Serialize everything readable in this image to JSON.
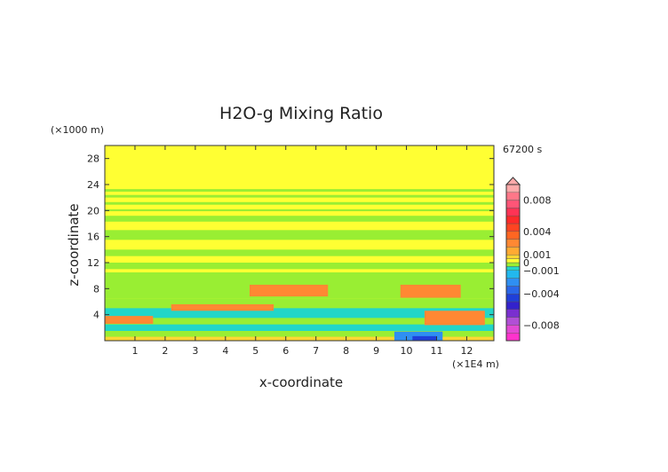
{
  "chart_data": {
    "type": "heatmap",
    "title": "H2O-g Mixing Ratio",
    "xlabel": "x-coordinate",
    "ylabel": "z-coordinate",
    "x_unit": "(×1E4 m)",
    "y_unit": "(×1000 m)",
    "time_label": "67200 s",
    "xlim": [
      0,
      12.9
    ],
    "ylim": [
      0,
      30
    ],
    "x_ticks": [
      1,
      2,
      3,
      4,
      5,
      6,
      7,
      8,
      9,
      10,
      11,
      12
    ],
    "y_ticks": [
      4,
      8,
      12,
      16,
      20,
      24,
      28
    ],
    "colorbar": {
      "range": [
        -0.01,
        0.01
      ],
      "extend": "max",
      "tick_labels": [
        {
          "value": 0.008,
          "label": "0.008"
        },
        {
          "value": 0.004,
          "label": "0.004"
        },
        {
          "value": 0.001,
          "label": "0.001"
        },
        {
          "value": 0,
          "label": "0"
        },
        {
          "value": -0.001,
          "label": "−0.001"
        },
        {
          "value": -0.004,
          "label": "−0.004"
        },
        {
          "value": -0.008,
          "label": "−0.008"
        }
      ],
      "bands": [
        {
          "from": -0.01,
          "to": -0.009,
          "color": "#ff33cc"
        },
        {
          "from": -0.009,
          "to": -0.008,
          "color": "#e24ad4"
        },
        {
          "from": -0.008,
          "to": -0.007,
          "color": "#b14fd6"
        },
        {
          "from": -0.007,
          "to": -0.006,
          "color": "#7a2fd0"
        },
        {
          "from": -0.006,
          "to": -0.005,
          "color": "#3322cc"
        },
        {
          "from": -0.005,
          "to": -0.004,
          "color": "#1f3fd9"
        },
        {
          "from": -0.004,
          "to": -0.003,
          "color": "#2a66e8"
        },
        {
          "from": -0.003,
          "to": -0.002,
          "color": "#2f8ff2"
        },
        {
          "from": -0.002,
          "to": -0.001,
          "color": "#22b8ee"
        },
        {
          "from": -0.001,
          "to": -0.0005,
          "color": "#22d6c8"
        },
        {
          "from": -0.0005,
          "to": 0,
          "color": "#99ee33"
        },
        {
          "from": 0,
          "to": 0.0005,
          "color": "#ffff33"
        },
        {
          "from": 0.0005,
          "to": 0.001,
          "color": "#ffd633"
        },
        {
          "from": 0.001,
          "to": 0.002,
          "color": "#ffaa33"
        },
        {
          "from": 0.002,
          "to": 0.003,
          "color": "#ff8833"
        },
        {
          "from": 0.003,
          "to": 0.004,
          "color": "#ff6622"
        },
        {
          "from": 0.004,
          "to": 0.005,
          "color": "#ff4422"
        },
        {
          "from": 0.005,
          "to": 0.006,
          "color": "#ff2a2a"
        },
        {
          "from": 0.006,
          "to": 0.007,
          "color": "#ff3355"
        },
        {
          "from": 0.007,
          "to": 0.008,
          "color": "#ff5577"
        },
        {
          "from": 0.008,
          "to": 0.009,
          "color": "#ff7788"
        },
        {
          "from": 0.009,
          "to": 0.01,
          "color": "#ffaaaa"
        }
      ]
    },
    "field": {
      "background": 0.0003,
      "regions": [
        {
          "x0": 0.0,
          "x1": 12.9,
          "z0": 28.0,
          "z1": 30.0,
          "value": 0.0002
        },
        {
          "x0": 0.0,
          "x1": 12.9,
          "z0": 22.9,
          "z1": 23.3,
          "value": -0.0003
        },
        {
          "x0": 0.0,
          "x1": 12.9,
          "z0": 22.0,
          "z1": 22.4,
          "value": -0.0003
        },
        {
          "x0": 0.0,
          "x1": 12.9,
          "z0": 20.9,
          "z1": 21.3,
          "value": -0.0003
        },
        {
          "x0": 0.0,
          "x1": 12.9,
          "z0": 19.9,
          "z1": 20.2,
          "value": -0.0003
        },
        {
          "x0": 0.0,
          "x1": 12.9,
          "z0": 18.3,
          "z1": 19.2,
          "value": -0.0003
        },
        {
          "x0": 0.0,
          "x1": 12.9,
          "z0": 15.5,
          "z1": 17.0,
          "value": -0.0003
        },
        {
          "x0": 0.0,
          "x1": 12.9,
          "z0": 13.0,
          "z1": 14.0,
          "value": -0.0003
        },
        {
          "x0": 0.0,
          "x1": 12.9,
          "z0": 11.0,
          "z1": 12.0,
          "value": -0.0003
        },
        {
          "x0": 0.0,
          "x1": 12.9,
          "z0": 6.5,
          "z1": 10.5,
          "value": -0.0003
        },
        {
          "x0": 0.0,
          "x1": 12.9,
          "z0": 0.0,
          "z1": 6.5,
          "value": -0.0003
        },
        {
          "x0": 0.0,
          "x1": 12.9,
          "z0": 3.5,
          "z1": 5.0,
          "value": -0.0008
        },
        {
          "x0": 0.0,
          "x1": 12.9,
          "z0": 1.5,
          "z1": 2.5,
          "value": -0.0008
        },
        {
          "x0": 0.0,
          "x1": 12.9,
          "z0": 0.0,
          "z1": 0.6,
          "value": 0.0008
        },
        {
          "x0": 0.0,
          "x1": 1.6,
          "z0": 2.6,
          "z1": 3.8,
          "value": 0.0025
        },
        {
          "x0": 2.2,
          "x1": 5.6,
          "z0": 4.6,
          "z1": 5.6,
          "value": 0.0025
        },
        {
          "x0": 4.8,
          "x1": 7.4,
          "z0": 6.8,
          "z1": 8.6,
          "value": 0.0025
        },
        {
          "x0": 9.8,
          "x1": 11.8,
          "z0": 6.6,
          "z1": 8.6,
          "value": 0.0025
        },
        {
          "x0": 10.6,
          "x1": 12.6,
          "z0": 2.4,
          "z1": 4.6,
          "value": 0.0025
        },
        {
          "x0": 9.6,
          "x1": 11.2,
          "z0": 0.0,
          "z1": 1.4,
          "value": -0.0025
        },
        {
          "x0": 10.2,
          "x1": 11.0,
          "z0": 0.0,
          "z1": 0.7,
          "value": -0.0045
        }
      ]
    }
  }
}
